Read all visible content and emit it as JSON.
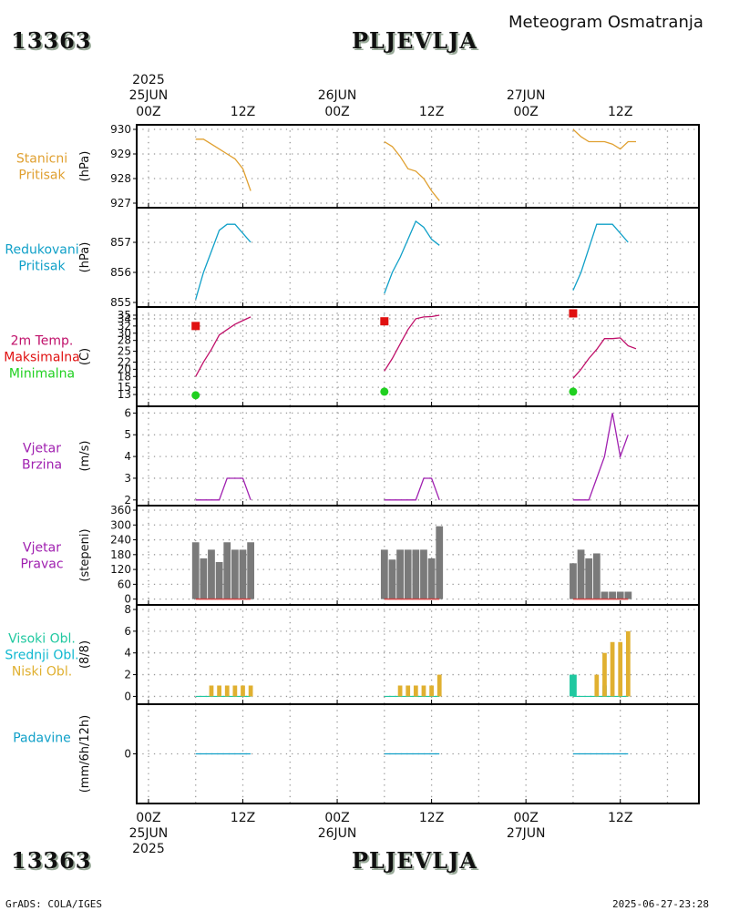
{
  "header": {
    "station_id": "13363",
    "station_name": "PLJEVLJA",
    "title": "Meteogram Osmatranja"
  },
  "footer": {
    "station_id": "13363",
    "station_name": "PLJEVLJA",
    "credit": "GrADS: COLA/IGES",
    "timestamp": "2025-06-27-23:28"
  },
  "colors": {
    "pressure": "#e0a030",
    "reduced": "#10a0c8",
    "temp_line": "#c0106a",
    "tmax": "#e01010",
    "tmin": "#20d020",
    "wind": "#a020b0",
    "bar": "#7a7a7a",
    "cloud_high": "#20c8a0",
    "cloud_mid": "#10b8d0",
    "cloud_low": "#e0b030",
    "precip": "#10a0c8"
  },
  "time_axis": {
    "top": [
      {
        "t": 0,
        "l1": "2025",
        "l2": "25JUN",
        "l3": "00Z"
      },
      {
        "t": 12,
        "l1": "",
        "l2": "",
        "l3": "12Z"
      },
      {
        "t": 24,
        "l1": "",
        "l2": "26JUN",
        "l3": "00Z"
      },
      {
        "t": 36,
        "l1": "",
        "l2": "",
        "l3": "12Z"
      },
      {
        "t": 48,
        "l1": "",
        "l2": "27JUN",
        "l3": "00Z"
      },
      {
        "t": 60,
        "l1": "",
        "l2": "",
        "l3": "12Z"
      }
    ],
    "bottom": [
      {
        "t": 0,
        "l1": "00Z",
        "l2": "25JUN",
        "l3": "2025"
      },
      {
        "t": 12,
        "l1": "12Z",
        "l2": "",
        "l3": ""
      },
      {
        "t": 24,
        "l1": "00Z",
        "l2": "26JUN",
        "l3": ""
      },
      {
        "t": 36,
        "l1": "12Z",
        "l2": "",
        "l3": ""
      },
      {
        "t": 48,
        "l1": "00Z",
        "l2": "27JUN",
        "l3": ""
      },
      {
        "t": 60,
        "l1": "12Z",
        "l2": "",
        "l3": ""
      }
    ],
    "range_hours": [
      -1.5,
      70
    ]
  },
  "chart_data": [
    {
      "type": "line",
      "id": "station_pressure",
      "labels": [
        "Stanicni",
        "Pritisak"
      ],
      "ylabel": "(hPa)",
      "ylim": [
        927,
        930
      ],
      "ticks": [
        927,
        928,
        929,
        930
      ],
      "series": [
        {
          "name": "Stanicni Pritisak",
          "color_key": "pressure",
          "segments": [
            [
              [
                6,
                929.6
              ],
              [
                7,
                929.6
              ],
              [
                8,
                929.4
              ],
              [
                9,
                929.2
              ],
              [
                10,
                929.0
              ],
              [
                11,
                928.8
              ],
              [
                12,
                928.4
              ],
              [
                13,
                927.5
              ]
            ],
            [
              [
                30,
                929.5
              ],
              [
                31,
                929.3
              ],
              [
                32,
                928.9
              ],
              [
                33,
                928.4
              ],
              [
                34,
                928.3
              ],
              [
                35,
                928.0
              ],
              [
                36,
                927.5
              ],
              [
                37,
                927.1
              ]
            ],
            [
              [
                54,
                930.0
              ],
              [
                55,
                929.7
              ],
              [
                56,
                929.5
              ],
              [
                57,
                929.5
              ],
              [
                58,
                929.5
              ],
              [
                59,
                929.4
              ],
              [
                60,
                929.2
              ],
              [
                61,
                929.5
              ],
              [
                62,
                929.5
              ]
            ]
          ]
        }
      ]
    },
    {
      "type": "line",
      "id": "reduced_pressure",
      "labels": [
        "Redukovani",
        "Pritisak"
      ],
      "ylabel": "(hPa)",
      "ylim": [
        855,
        858
      ],
      "ticks": [
        855,
        856,
        857
      ],
      "series": [
        {
          "name": "Redukovani Pritisak",
          "color_key": "reduced",
          "segments": [
            [
              [
                6,
                855.1
              ],
              [
                7,
                856.0
              ],
              [
                8,
                856.7
              ],
              [
                9,
                857.4
              ],
              [
                10,
                857.6
              ],
              [
                11,
                857.6
              ],
              [
                12,
                857.3
              ],
              [
                13,
                857.0
              ]
            ],
            [
              [
                30,
                855.3
              ],
              [
                31,
                856.0
              ],
              [
                32,
                856.5
              ],
              [
                33,
                857.1
              ],
              [
                34,
                857.7
              ],
              [
                35,
                857.5
              ],
              [
                36,
                857.1
              ],
              [
                37,
                856.9
              ]
            ],
            [
              [
                54,
                855.4
              ],
              [
                55,
                856.0
              ],
              [
                56,
                856.8
              ],
              [
                57,
                857.6
              ],
              [
                58,
                857.6
              ],
              [
                59,
                857.6
              ],
              [
                60,
                857.3
              ],
              [
                61,
                857.0
              ]
            ]
          ]
        }
      ]
    },
    {
      "type": "line",
      "id": "temperature",
      "labels": [
        "2m Temp.",
        "Maksimalna",
        "Minimalna"
      ],
      "label_color_keys": [
        "temp_line",
        "tmax",
        "tmin"
      ],
      "ylabel": "(C)",
      "ylim": [
        11,
        36
      ],
      "ticks": [
        13,
        15,
        18,
        20,
        22,
        25,
        28,
        30,
        32,
        34,
        35
      ],
      "series": [
        {
          "name": "2m Temp.",
          "color_key": "temp_line",
          "segments": [
            [
              [
                6,
                18.0
              ],
              [
                7,
                22.0
              ],
              [
                8,
                25.5
              ],
              [
                9,
                29.5
              ],
              [
                10,
                31.0
              ],
              [
                11,
                32.5
              ],
              [
                12,
                33.5
              ],
              [
                13,
                34.5
              ]
            ],
            [
              [
                30,
                19.5
              ],
              [
                31,
                23.0
              ],
              [
                32,
                27.0
              ],
              [
                33,
                31.0
              ],
              [
                34,
                34.0
              ],
              [
                35,
                34.5
              ],
              [
                36,
                34.6
              ],
              [
                37,
                35.0
              ]
            ],
            [
              [
                54,
                17.5
              ],
              [
                55,
                20.0
              ],
              [
                56,
                23.0
              ],
              [
                57,
                25.5
              ],
              [
                58,
                28.5
              ],
              [
                59,
                28.5
              ],
              [
                60,
                28.7
              ],
              [
                61,
                26.5
              ],
              [
                62,
                25.7
              ]
            ]
          ]
        }
      ],
      "points": [
        {
          "name": "Maksimalna",
          "color_key": "tmax",
          "shape": "square",
          "values": [
            [
              6,
              32.0
            ],
            [
              30,
              33.3
            ],
            [
              54,
              35.5
            ]
          ]
        },
        {
          "name": "Minimalna",
          "color_key": "tmin",
          "shape": "circle",
          "values": [
            [
              6,
              12.8
            ],
            [
              30,
              13.8
            ],
            [
              54,
              13.8
            ]
          ]
        }
      ]
    },
    {
      "type": "line",
      "id": "wind_speed",
      "labels": [
        "Vjetar",
        "Brzina"
      ],
      "ylabel": "(m/s)",
      "ylim": [
        1.95,
        6.1
      ],
      "ticks": [
        2,
        3,
        4,
        5,
        6
      ],
      "series": [
        {
          "name": "Vjetar Brzina",
          "color_key": "wind",
          "segments": [
            [
              [
                6,
                2
              ],
              [
                7,
                2
              ],
              [
                8,
                2
              ],
              [
                9,
                2
              ],
              [
                10,
                3
              ],
              [
                11,
                3
              ],
              [
                12,
                3
              ],
              [
                13,
                2
              ]
            ],
            [
              [
                30,
                2
              ],
              [
                31,
                2
              ],
              [
                32,
                2
              ],
              [
                33,
                2
              ],
              [
                34,
                2
              ],
              [
                35,
                3
              ],
              [
                36,
                3
              ],
              [
                37,
                2
              ]
            ],
            [
              [
                54,
                2
              ],
              [
                55,
                2
              ],
              [
                56,
                2
              ],
              [
                57,
                3
              ],
              [
                58,
                4
              ],
              [
                59,
                6
              ],
              [
                60,
                4
              ],
              [
                61,
                5
              ]
            ]
          ]
        }
      ]
    },
    {
      "type": "bar",
      "id": "wind_direction",
      "labels": [
        "Vjetar",
        "Pravac"
      ],
      "ylabel": "(stepeni)",
      "ylim": [
        -5,
        360
      ],
      "ticks": [
        0,
        60,
        120,
        180,
        240,
        300,
        360
      ],
      "bars": [
        {
          "t": 6,
          "v": 230
        },
        {
          "t": 7,
          "v": 165
        },
        {
          "t": 8,
          "v": 200
        },
        {
          "t": 9,
          "v": 150
        },
        {
          "t": 10,
          "v": 230
        },
        {
          "t": 11,
          "v": 200
        },
        {
          "t": 12,
          "v": 200
        },
        {
          "t": 13,
          "v": 230
        },
        {
          "t": 30,
          "v": 200
        },
        {
          "t": 31,
          "v": 160
        },
        {
          "t": 32,
          "v": 200
        },
        {
          "t": 33,
          "v": 200
        },
        {
          "t": 34,
          "v": 200
        },
        {
          "t": 35,
          "v": 200
        },
        {
          "t": 36,
          "v": 165
        },
        {
          "t": 37,
          "v": 295
        },
        {
          "t": 54,
          "v": 145
        },
        {
          "t": 55,
          "v": 200
        },
        {
          "t": 56,
          "v": 165
        },
        {
          "t": 57,
          "v": 185
        },
        {
          "t": 58,
          "v": 30
        },
        {
          "t": 59,
          "v": 30
        },
        {
          "t": 60,
          "v": 30
        },
        {
          "t": 61,
          "v": 30
        }
      ],
      "baseline_segments": [
        [
          6,
          13
        ],
        [
          30,
          37
        ],
        [
          54,
          61
        ]
      ]
    },
    {
      "type": "bar",
      "id": "clouds",
      "labels": [
        "Visoki Obl.",
        "Srednji Obl.",
        "Niski Obl."
      ],
      "label_color_keys": [
        "cloud_high",
        "cloud_mid",
        "cloud_low"
      ],
      "ylabel": "(8/8)",
      "ylim": [
        -0.3,
        8
      ],
      "ticks": [
        0,
        2,
        4,
        6,
        8
      ],
      "series": [
        {
          "name": "Visoki Obl.",
          "color_key": "cloud_high",
          "values": [
            [
              54,
              2
            ]
          ]
        },
        {
          "name": "Srednji Obl.",
          "color_key": "cloud_mid",
          "values": [
            [
              58,
              1
            ]
          ]
        },
        {
          "name": "Niski Obl.",
          "color_key": "cloud_low",
          "values": [
            [
              8,
              1
            ],
            [
              9,
              1
            ],
            [
              10,
              1
            ],
            [
              11,
              1
            ],
            [
              12,
              1
            ],
            [
              13,
              1
            ],
            [
              32,
              1
            ],
            [
              33,
              1
            ],
            [
              34,
              1
            ],
            [
              35,
              1
            ],
            [
              36,
              1
            ],
            [
              37,
              2
            ],
            [
              57,
              2
            ],
            [
              58,
              4
            ],
            [
              59,
              5
            ],
            [
              60,
              5
            ],
            [
              61,
              6
            ]
          ]
        }
      ],
      "baseline_segments": [
        [
          6,
          13
        ],
        [
          30,
          37
        ],
        [
          54,
          61
        ]
      ]
    },
    {
      "type": "line",
      "id": "precipitation",
      "labels": [
        "Padavine"
      ],
      "ylabel": "(mm/6h/12h)",
      "ylim": [
        -1,
        1
      ],
      "ticks": [
        0
      ],
      "series": [
        {
          "name": "Padavine",
          "color_key": "precip",
          "segments": [
            [
              [
                6,
                0
              ],
              [
                13,
                0
              ]
            ],
            [
              [
                30,
                0
              ],
              [
                37,
                0
              ]
            ],
            [
              [
                54,
                0
              ],
              [
                61,
                0
              ]
            ]
          ]
        }
      ]
    }
  ]
}
